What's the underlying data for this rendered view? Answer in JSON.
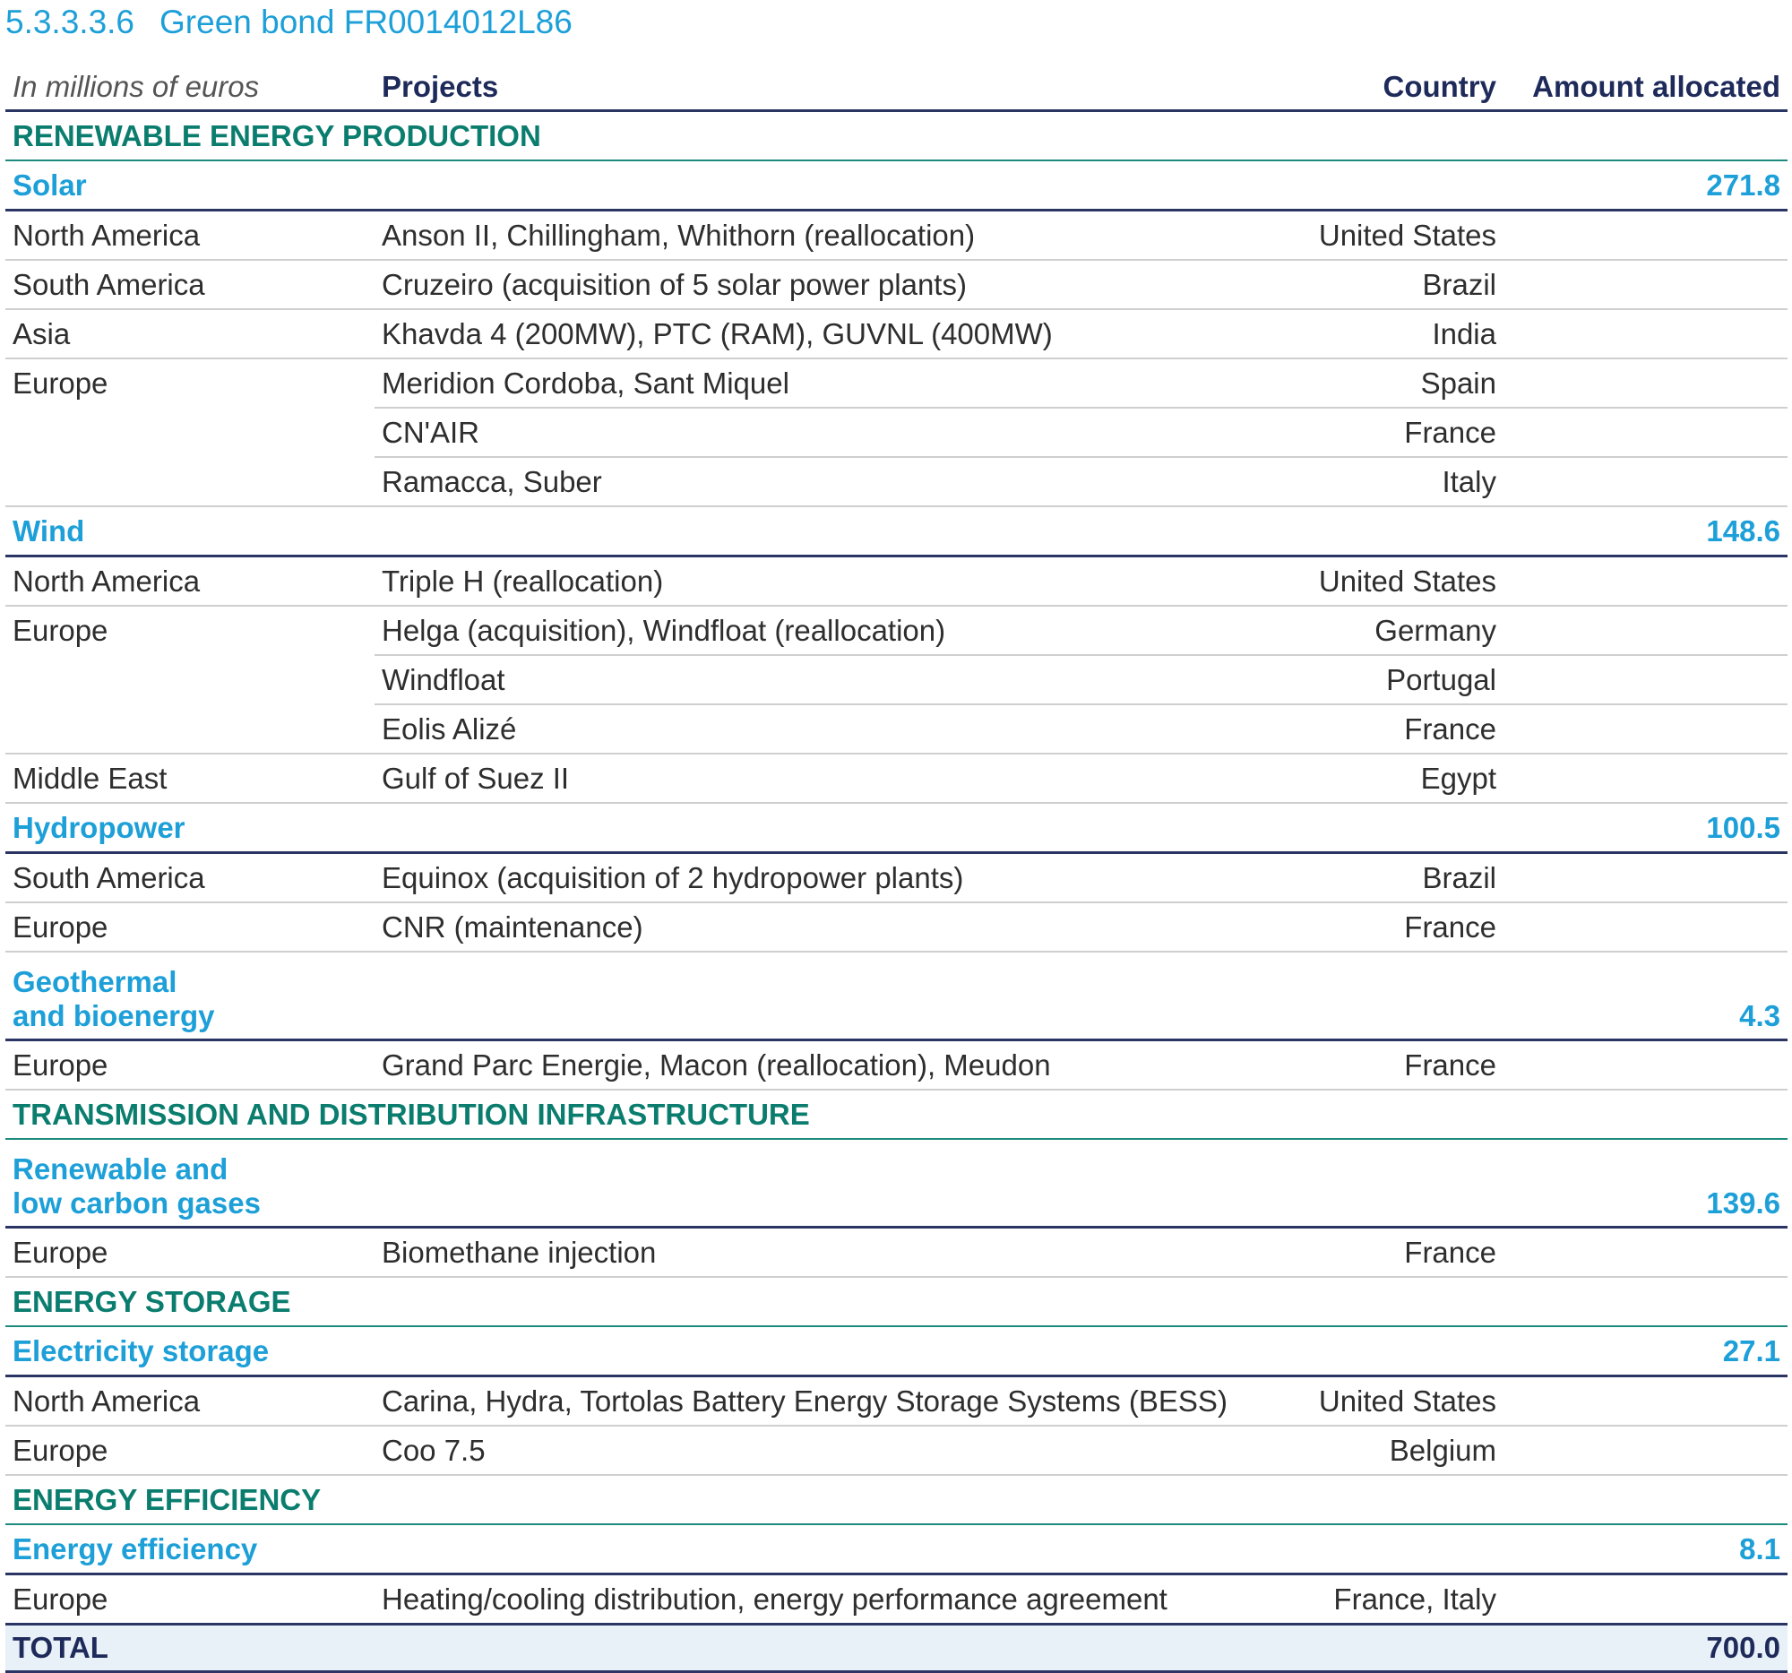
{
  "title": {
    "number": "5.3.3.3.6",
    "text": "Green bond FR0014012L86"
  },
  "header": {
    "unit": "In millions of euros",
    "projects": "Projects",
    "country": "Country",
    "amount": "Amount allocated"
  },
  "sections": [
    {
      "label": "RENEWABLE ENERGY PRODUCTION"
    },
    {
      "label": "TRANSMISSION AND DISTRIBUTION INFRASTRUCTURE"
    },
    {
      "label": "ENERGY STORAGE"
    },
    {
      "label": "ENERGY EFFICIENCY"
    }
  ],
  "categories": [
    {
      "name": "Solar",
      "amount": "271.8",
      "rows": [
        {
          "region": "North America",
          "project": "Anson II, Chillingham, Whithorn (reallocation)",
          "country": "United States"
        },
        {
          "region": "South America",
          "project": "Cruzeiro (acquisition of 5 solar power plants)",
          "country": "Brazil"
        },
        {
          "region": "Asia",
          "project": "Khavda 4 (200MW), PTC (RAM), GUVNL (400MW)",
          "country": "India"
        },
        {
          "region": "Europe",
          "project": "Meridion Cordoba, Sant Miquel",
          "country": "Spain"
        },
        {
          "region": "",
          "project": "CN'AIR",
          "country": "France"
        },
        {
          "region": "",
          "project": "Ramacca, Suber",
          "country": "Italy"
        }
      ]
    },
    {
      "name": "Wind",
      "amount": "148.6",
      "rows": [
        {
          "region": "North America",
          "project": "Triple H (reallocation)",
          "country": "United States"
        },
        {
          "region": "Europe",
          "project": "Helga (acquisition), Windfloat (reallocation)",
          "country": "Germany"
        },
        {
          "region": "",
          "project": "Windfloat",
          "country": "Portugal"
        },
        {
          "region": "",
          "project": "Eolis Alizé",
          "country": "France"
        },
        {
          "region": "Middle East",
          "project": "Gulf of Suez II",
          "country": "Egypt"
        }
      ]
    },
    {
      "name": "Hydropower",
      "amount": "100.5",
      "rows": [
        {
          "region": "South America",
          "project": "Equinox (acquisition of 2 hydropower plants)",
          "country": "Brazil"
        },
        {
          "region": "Europe",
          "project": "CNR (maintenance)",
          "country": "France"
        }
      ]
    },
    {
      "name_line1": "Geothermal",
      "name_line2": "and bioenergy",
      "amount": "4.3",
      "rows": [
        {
          "region": "Europe",
          "project": "Grand Parc Energie, Macon (reallocation), Meudon",
          "country": "France"
        }
      ]
    },
    {
      "name_line1": "Renewable and",
      "name_line2": "low carbon gases",
      "amount": "139.6",
      "rows": [
        {
          "region": "Europe",
          "project": "Biomethane injection",
          "country": "France"
        }
      ]
    },
    {
      "name": "Electricity storage",
      "amount": "27.1",
      "rows": [
        {
          "region": "North America",
          "project": "Carina, Hydra, Tortolas Battery Energy Storage Systems (BESS)",
          "country": "United States"
        },
        {
          "region": "Europe",
          "project": "Coo 7.5",
          "country": "Belgium"
        }
      ]
    },
    {
      "name": "Energy efficiency",
      "amount": "8.1",
      "rows": [
        {
          "region": "Europe",
          "project": "Heating/cooling distribution, energy performance agreement",
          "country": "France, Italy"
        }
      ]
    }
  ],
  "total": {
    "label": "TOTAL",
    "amount": "700.0"
  },
  "colors": {
    "title_blue": "#1d9fd8",
    "section_green": "#0a7d6e",
    "navy": "#1e2a5a",
    "total_bg": "#e8f0f8"
  }
}
